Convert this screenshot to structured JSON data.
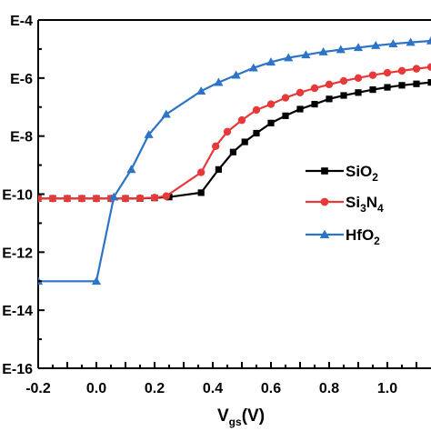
{
  "chart_data": {
    "type": "line",
    "xlabel": {
      "main": "V",
      "sub": "gs",
      "rest": "(V)"
    },
    "ylabel": "",
    "xlim": [
      -0.2,
      1.15
    ],
    "ylim": [
      -16,
      -4
    ],
    "grid": false,
    "legend_position": "right",
    "x_ticks": [
      {
        "value": -0.2,
        "label": "-0.2"
      },
      {
        "value": -0.1,
        "label": "-0.1"
      },
      {
        "value": 0.0,
        "label": "0.0"
      },
      {
        "value": 0.1,
        "label": "0.1"
      },
      {
        "value": 0.2,
        "label": "0.2"
      },
      {
        "value": 0.3,
        "label": "0.3"
      },
      {
        "value": 0.4,
        "label": "0.4"
      },
      {
        "value": 0.5,
        "label": "0.5"
      },
      {
        "value": 0.6,
        "label": "0.6"
      },
      {
        "value": 0.7,
        "label": "0.7"
      },
      {
        "value": 0.8,
        "label": "0.8"
      },
      {
        "value": 0.9,
        "label": "0.9"
      },
      {
        "value": 1.0,
        "label": "1.0"
      },
      {
        "value": 1.1,
        "label": "1.1"
      }
    ],
    "y_ticks": [
      {
        "value": -4,
        "label": "E-4"
      },
      {
        "value": -6,
        "label": "E-6"
      },
      {
        "value": -8,
        "label": "E-8"
      },
      {
        "value": -10,
        "label": "E-10"
      },
      {
        "value": -12,
        "label": "E-12"
      },
      {
        "value": -14,
        "label": "E-14"
      },
      {
        "value": -16,
        "label": "E-16"
      }
    ],
    "series": [
      {
        "name": "SiO",
        "name_sub": "2",
        "color": "#000000",
        "marker": "square",
        "points": [
          [
            -0.2,
            -10.15
          ],
          [
            -0.15,
            -10.15
          ],
          [
            -0.1,
            -10.15
          ],
          [
            -0.05,
            -10.15
          ],
          [
            0.0,
            -10.15
          ],
          [
            0.05,
            -10.15
          ],
          [
            0.1,
            -10.15
          ],
          [
            0.15,
            -10.15
          ],
          [
            0.2,
            -10.13
          ],
          [
            0.25,
            -10.1
          ],
          [
            0.36,
            -9.95
          ],
          [
            0.42,
            -9.15
          ],
          [
            0.47,
            -8.55
          ],
          [
            0.51,
            -8.2
          ],
          [
            0.55,
            -7.9
          ],
          [
            0.6,
            -7.55
          ],
          [
            0.65,
            -7.3
          ],
          [
            0.7,
            -7.07
          ],
          [
            0.75,
            -6.9
          ],
          [
            0.8,
            -6.72
          ],
          [
            0.85,
            -6.6
          ],
          [
            0.9,
            -6.5
          ],
          [
            0.95,
            -6.4
          ],
          [
            1.0,
            -6.32
          ],
          [
            1.05,
            -6.25
          ],
          [
            1.1,
            -6.2
          ],
          [
            1.15,
            -6.15
          ]
        ]
      },
      {
        "name": "Si",
        "name_sub": "3",
        "name_mid": "N",
        "name_sub2": "4",
        "color": "#e8393a",
        "marker": "circle",
        "points": [
          [
            -0.2,
            -10.15
          ],
          [
            -0.15,
            -10.15
          ],
          [
            -0.1,
            -10.15
          ],
          [
            -0.05,
            -10.15
          ],
          [
            0.0,
            -10.15
          ],
          [
            0.05,
            -10.15
          ],
          [
            0.1,
            -10.15
          ],
          [
            0.15,
            -10.14
          ],
          [
            0.2,
            -10.12
          ],
          [
            0.24,
            -10.07
          ],
          [
            0.36,
            -9.25
          ],
          [
            0.41,
            -8.35
          ],
          [
            0.45,
            -7.85
          ],
          [
            0.5,
            -7.45
          ],
          [
            0.55,
            -7.1
          ],
          [
            0.6,
            -6.9
          ],
          [
            0.65,
            -6.68
          ],
          [
            0.7,
            -6.5
          ],
          [
            0.75,
            -6.35
          ],
          [
            0.8,
            -6.22
          ],
          [
            0.85,
            -6.1
          ],
          [
            0.9,
            -6.0
          ],
          [
            0.95,
            -5.9
          ],
          [
            1.0,
            -5.82
          ],
          [
            1.05,
            -5.75
          ],
          [
            1.1,
            -5.68
          ],
          [
            1.15,
            -5.62
          ]
        ]
      },
      {
        "name": "HfO",
        "name_sub": "2",
        "color": "#2e74c6",
        "marker": "triangle",
        "points": [
          [
            -0.2,
            -13.0
          ],
          [
            0.0,
            -13.0
          ],
          [
            0.06,
            -10.1
          ],
          [
            0.12,
            -9.15
          ],
          [
            0.18,
            -7.95
          ],
          [
            0.24,
            -7.25
          ],
          [
            0.36,
            -6.45
          ],
          [
            0.42,
            -6.15
          ],
          [
            0.48,
            -5.9
          ],
          [
            0.54,
            -5.65
          ],
          [
            0.6,
            -5.45
          ],
          [
            0.66,
            -5.3
          ],
          [
            0.72,
            -5.2
          ],
          [
            0.78,
            -5.1
          ],
          [
            0.84,
            -5.02
          ],
          [
            0.9,
            -4.95
          ],
          [
            0.96,
            -4.88
          ],
          [
            1.02,
            -4.82
          ],
          [
            1.08,
            -4.77
          ],
          [
            1.15,
            -4.72
          ]
        ]
      }
    ]
  }
}
